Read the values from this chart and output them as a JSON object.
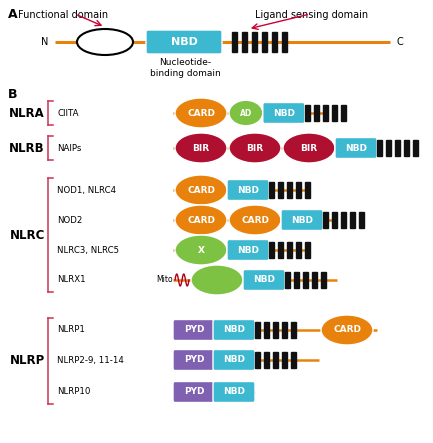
{
  "bg_color": "#ffffff",
  "orange_color": "#E8820C",
  "teal_color": "#3CB8D0",
  "green_color": "#7DC242",
  "crimson_color": "#B01030",
  "purple_color": "#8060B0",
  "dark_color": "#1A1A1A",
  "arrow_color": "#CC0033",
  "rows": [
    {
      "group": "NLRA",
      "label": "CIITA",
      "domains": [
        {
          "type": "ellipse",
          "color": "#E8820C",
          "text": "CARD"
        },
        {
          "type": "ellipse",
          "color": "#7DC242",
          "text": "AD",
          "small": true
        },
        {
          "type": "rect",
          "color": "#3CB8D0",
          "text": "NBD"
        },
        {
          "type": "lrr"
        },
        {
          "type": "tail"
        }
      ]
    },
    {
      "group": "NLRB",
      "label": "NAIPs",
      "domains": [
        {
          "type": "ellipse",
          "color": "#B01030",
          "text": "BIR"
        },
        {
          "type": "ellipse",
          "color": "#B01030",
          "text": "BIR"
        },
        {
          "type": "ellipse",
          "color": "#B01030",
          "text": "BIR"
        },
        {
          "type": "rect",
          "color": "#3CB8D0",
          "text": "NBD"
        },
        {
          "type": "lrr"
        },
        {
          "type": "tail"
        }
      ]
    },
    {
      "group": "NLRC",
      "label": "NOD1, NLRC4",
      "domains": [
        {
          "type": "ellipse",
          "color": "#E8820C",
          "text": "CARD"
        },
        {
          "type": "rect",
          "color": "#3CB8D0",
          "text": "NBD"
        },
        {
          "type": "lrr"
        },
        {
          "type": "tail"
        }
      ]
    },
    {
      "group": "NLRC",
      "label": "NOD2",
      "domains": [
        {
          "type": "ellipse",
          "color": "#E8820C",
          "text": "CARD"
        },
        {
          "type": "ellipse",
          "color": "#E8820C",
          "text": "CARD"
        },
        {
          "type": "rect",
          "color": "#3CB8D0",
          "text": "NBD"
        },
        {
          "type": "lrr"
        },
        {
          "type": "tail"
        }
      ]
    },
    {
      "group": "NLRC",
      "label": "NLRC3, NLRC5",
      "domains": [
        {
          "type": "ellipse",
          "color": "#7DC242",
          "text": "X"
        },
        {
          "type": "rect",
          "color": "#3CB8D0",
          "text": "NBD"
        },
        {
          "type": "lrr"
        },
        {
          "type": "tail"
        }
      ]
    },
    {
      "group": "NLRC",
      "label": "NLRX1",
      "domains": [
        {
          "type": "mito"
        },
        {
          "type": "ellipse",
          "color": "#7DC242",
          "text": ""
        },
        {
          "type": "rect",
          "color": "#3CB8D0",
          "text": "NBD"
        },
        {
          "type": "lrr"
        },
        {
          "type": "tail"
        }
      ]
    },
    {
      "group": "NLRP",
      "label": "NLRP1",
      "domains": [
        {
          "type": "rect",
          "color": "#8060B0",
          "text": "PYD"
        },
        {
          "type": "rect",
          "color": "#3CB8D0",
          "text": "NBD"
        },
        {
          "type": "lrr"
        },
        {
          "type": "tail"
        },
        {
          "type": "ellipse_end",
          "color": "#E8820C",
          "text": "CARD"
        }
      ]
    },
    {
      "group": "NLRP",
      "label": "NLRP2-9, 11-14",
      "domains": [
        {
          "type": "rect",
          "color": "#8060B0",
          "text": "PYD"
        },
        {
          "type": "rect",
          "color": "#3CB8D0",
          "text": "NBD"
        },
        {
          "type": "lrr"
        },
        {
          "type": "tail"
        }
      ]
    },
    {
      "group": "NLRP",
      "label": "NLRP10",
      "domains": [
        {
          "type": "rect",
          "color": "#8060B0",
          "text": "PYD"
        },
        {
          "type": "rect",
          "color": "#3CB8D0",
          "text": "NBD"
        }
      ]
    }
  ]
}
